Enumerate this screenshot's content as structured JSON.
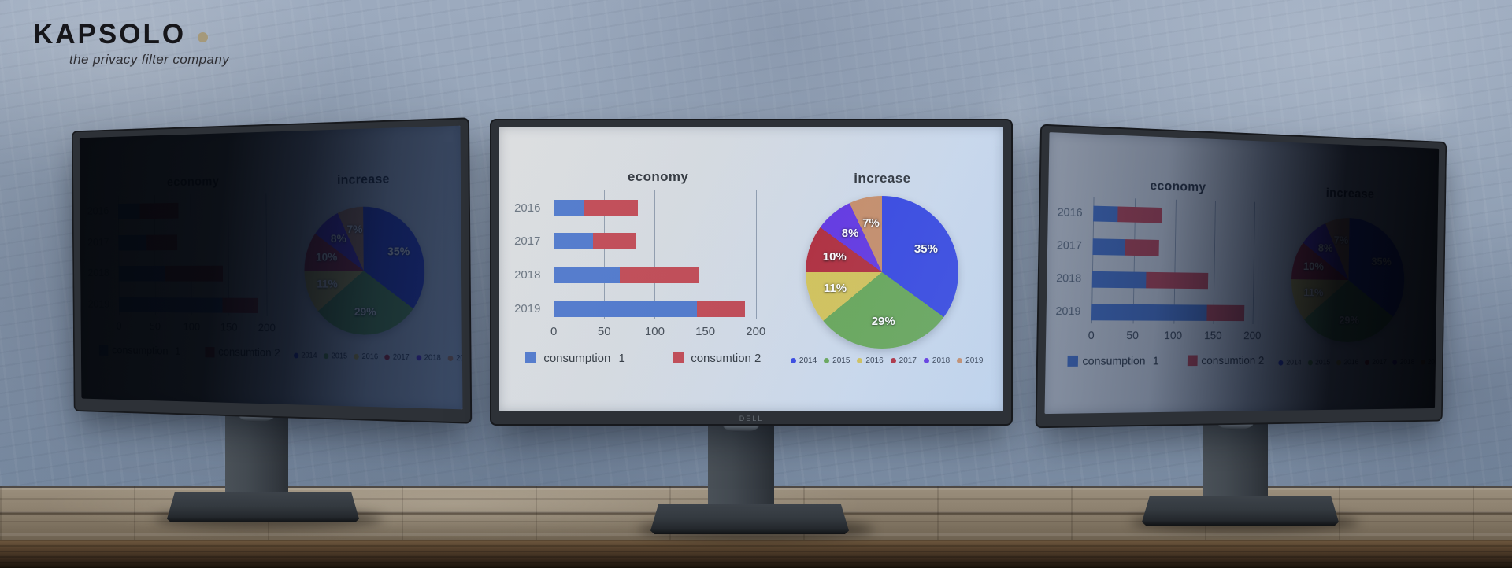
{
  "brand": {
    "name": "KAPSOLO",
    "tagline": "the privacy filter company",
    "dot_color": "#a5997a"
  },
  "monitors": {
    "brand_label": "DELL"
  },
  "chart_data": [
    {
      "type": "bar",
      "orientation": "horizontal",
      "stacked": true,
      "title": "economy",
      "categories": [
        "2016",
        "2017",
        "2018",
        "2019"
      ],
      "series": [
        {
          "name": "consumption 1",
          "color": "#4570c8",
          "values": [
            30,
            39,
            65,
            142
          ]
        },
        {
          "name": "consumtion 2",
          "color": "#bd3e49",
          "values": [
            53,
            42,
            78,
            47
          ]
        }
      ],
      "xlim": [
        0,
        200
      ],
      "xticks": [
        "0",
        "50",
        "100",
        "150",
        "200"
      ],
      "grid": true,
      "legend_position": "bottom"
    },
    {
      "type": "pie",
      "title": "increase",
      "labels": [
        "2014",
        "2015",
        "2016",
        "2017",
        "2018",
        "2019"
      ],
      "values": [
        35,
        29,
        11,
        10,
        8,
        7
      ],
      "labels_pct": [
        "35%",
        "29%",
        "11%",
        "10%",
        "8%",
        "7%"
      ],
      "colors": [
        "#2b3cdf",
        "#5fa24c",
        "#d2c04e",
        "#ad2030",
        "#5a2ae0",
        "#c5875f"
      ],
      "start_angle_deg": 0,
      "direction": "clockwise",
      "legend_position": "bottom"
    }
  ]
}
